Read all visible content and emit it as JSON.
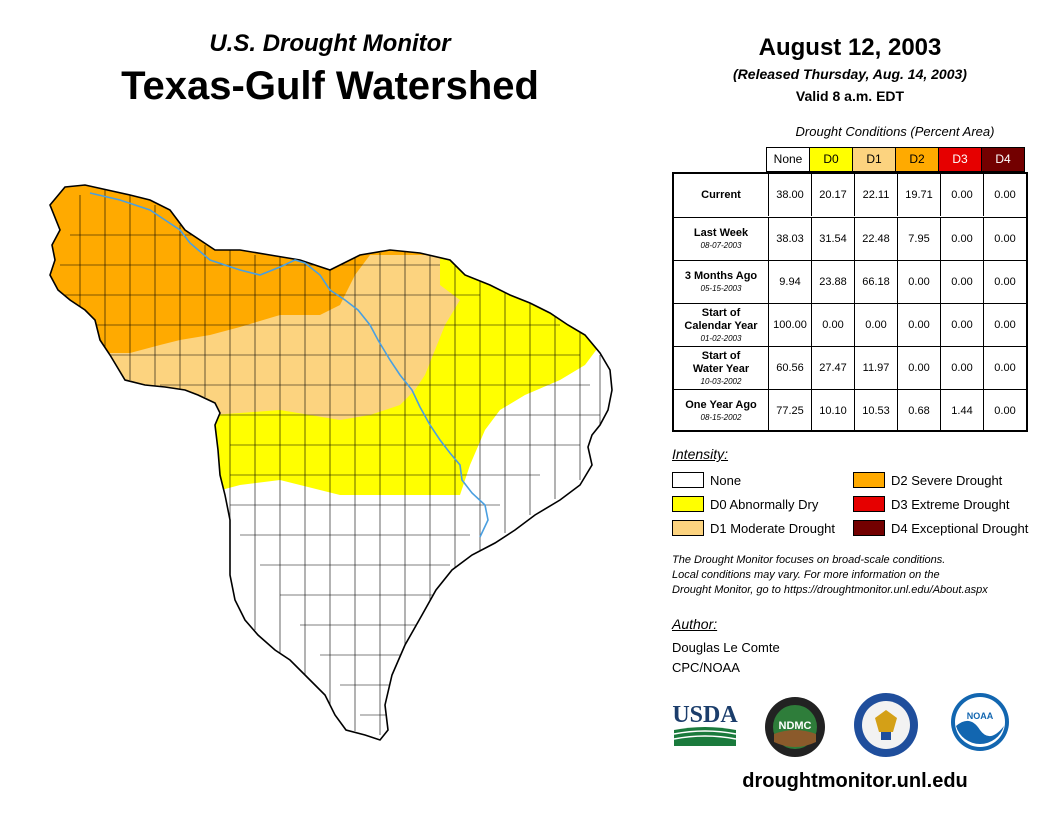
{
  "header": {
    "subtitle": "U.S. Drought Monitor",
    "title": "Texas-Gulf Watershed",
    "date": "August 12, 2003",
    "released": "(Released Thursday, Aug. 14, 2003)",
    "valid": "Valid 8 a.m. EDT"
  },
  "table": {
    "caption": "Drought Conditions (Percent Area)",
    "columns": [
      {
        "label": "None",
        "color": "#ffffff",
        "text_color": "#000000"
      },
      {
        "label": "D0",
        "color": "#ffff00",
        "text_color": "#000000"
      },
      {
        "label": "D1",
        "color": "#fcd37f",
        "text_color": "#000000"
      },
      {
        "label": "D2",
        "color": "#ffaa00",
        "text_color": "#000000"
      },
      {
        "label": "D3",
        "color": "#e60000",
        "text_color": "#ffffff"
      },
      {
        "label": "D4",
        "color": "#730000",
        "text_color": "#ffffff"
      }
    ],
    "rows": [
      {
        "label": "Current",
        "label2": "",
        "date": "",
        "values": [
          "38.00",
          "20.17",
          "22.11",
          "19.71",
          "0.00",
          "0.00"
        ]
      },
      {
        "label": "Last Week",
        "label2": "",
        "date": "08-07-2003",
        "values": [
          "38.03",
          "31.54",
          "22.48",
          "7.95",
          "0.00",
          "0.00"
        ]
      },
      {
        "label": "3 Months Ago",
        "label2": "",
        "date": "05-15-2003",
        "values": [
          "9.94",
          "23.88",
          "66.18",
          "0.00",
          "0.00",
          "0.00"
        ]
      },
      {
        "label": "Start of",
        "label2": "Calendar Year",
        "date": "01-02-2003",
        "values": [
          "100.00",
          "0.00",
          "0.00",
          "0.00",
          "0.00",
          "0.00"
        ]
      },
      {
        "label": "Start of",
        "label2": "Water Year",
        "date": "10-03-2002",
        "values": [
          "60.56",
          "27.47",
          "11.97",
          "0.00",
          "0.00",
          "0.00"
        ]
      },
      {
        "label": "One Year Ago",
        "label2": "",
        "date": "08-15-2002",
        "values": [
          "77.25",
          "10.10",
          "10.53",
          "0.68",
          "1.44",
          "0.00"
        ]
      }
    ]
  },
  "legend": {
    "title": "Intensity:",
    "items": [
      {
        "label": "None",
        "color": "#ffffff"
      },
      {
        "label": "D0 Abnormally Dry",
        "color": "#ffff00"
      },
      {
        "label": "D1 Moderate Drought",
        "color": "#fcd37f"
      },
      {
        "label": "D2 Severe Drought",
        "color": "#ffaa00"
      },
      {
        "label": "D3 Extreme Drought",
        "color": "#e60000"
      },
      {
        "label": "D4 Exceptional Drought",
        "color": "#730000"
      }
    ]
  },
  "note": {
    "line1": "The Drought Monitor focuses on broad-scale conditions.",
    "line2": "Local conditions may vary. For more information on the",
    "line3": "Drought Monitor, go to https://droughtmonitor.unl.edu/About.aspx"
  },
  "author": {
    "label": "Author:",
    "name": "Douglas Le Comte",
    "org": "CPC/NOAA"
  },
  "logos": {
    "usda": "USDA",
    "ndmc": "NDMC",
    "noaa": "NOAA"
  },
  "footer": {
    "website": "droughtmonitor.unl.edu"
  },
  "colors": {
    "river": "#4a9fe0",
    "boundary": "#000000"
  }
}
